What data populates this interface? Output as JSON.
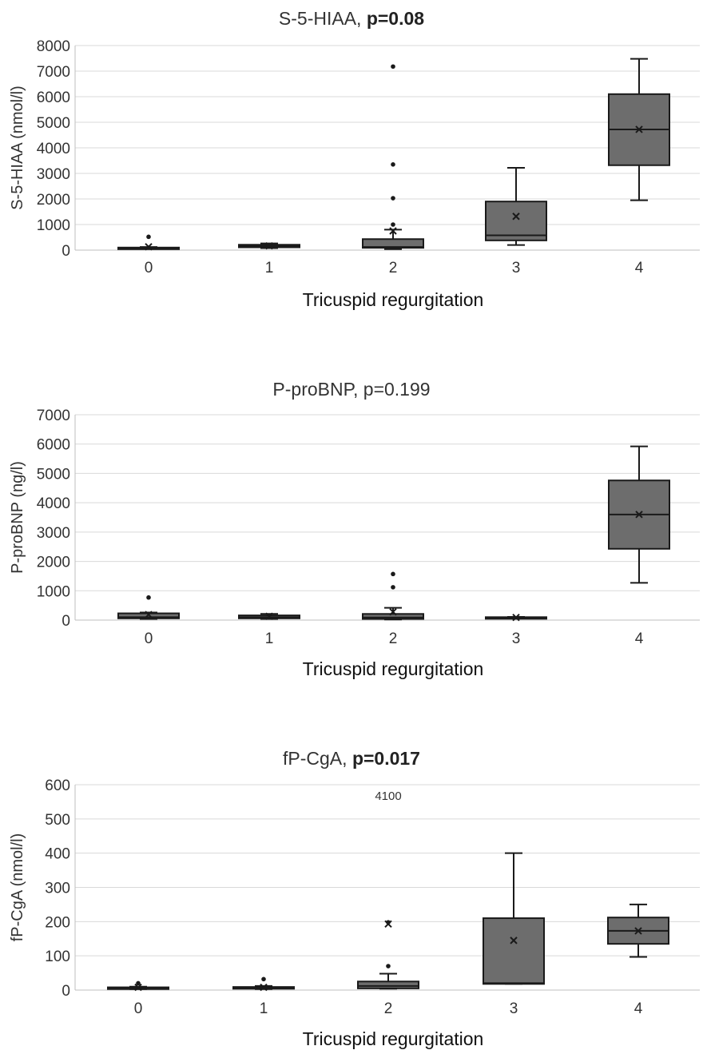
{
  "chart_data": [
    {
      "type": "box",
      "title": "S-5-HIAA, ",
      "title_bold": "p=0.08",
      "xlabel": "Tricuspid regurgitation",
      "ylabel": "S-5-HIAA (nmol/l)",
      "ylim": [
        0,
        8000
      ],
      "yticks": [
        0,
        1000,
        2000,
        3000,
        4000,
        5000,
        6000,
        7000,
        8000
      ],
      "grid": true,
      "categories": [
        "0",
        "1",
        "2",
        "3",
        "4"
      ],
      "boxes": [
        {
          "category": "0",
          "min": 60,
          "q1": 70,
          "median": 80,
          "q3": 100,
          "max": 120,
          "mean": 130,
          "outliers": [
            520
          ]
        },
        {
          "category": "1",
          "min": 80,
          "q1": 110,
          "median": 170,
          "q3": 210,
          "max": 260,
          "mean": 165,
          "outliers": []
        },
        {
          "category": "2",
          "min": 40,
          "q1": 90,
          "median": 120,
          "q3": 430,
          "max": 800,
          "mean": 750,
          "outliers": [
            1000,
            2030,
            3350,
            7180
          ]
        },
        {
          "category": "3",
          "min": 200,
          "q1": 380,
          "median": 580,
          "q3": 1900,
          "max": 3220,
          "mean": 1320,
          "outliers": []
        },
        {
          "category": "4",
          "min": 1950,
          "q1": 3320,
          "median": 4720,
          "q3": 6100,
          "max": 7480,
          "mean": 4720,
          "outliers": []
        }
      ]
    },
    {
      "type": "box",
      "title": "P-proBNP, p=0.199",
      "title_bold": "",
      "xlabel": "Tricuspid regurgitation",
      "ylabel": "P-proBNP (ng/l)",
      "ylim": [
        0,
        7000
      ],
      "yticks": [
        0,
        1000,
        2000,
        3000,
        4000,
        5000,
        6000,
        7000
      ],
      "grid": true,
      "categories": [
        "0",
        "1",
        "2",
        "3",
        "4"
      ],
      "boxes": [
        {
          "category": "0",
          "min": 40,
          "q1": 60,
          "median": 100,
          "q3": 230,
          "max": 260,
          "mean": 190,
          "outliers": [
            770
          ]
        },
        {
          "category": "1",
          "min": 40,
          "q1": 60,
          "median": 100,
          "q3": 160,
          "max": 210,
          "mean": 130,
          "outliers": []
        },
        {
          "category": "2",
          "min": 20,
          "q1": 40,
          "median": 90,
          "q3": 210,
          "max": 420,
          "mean": 280,
          "outliers": [
            1120,
            1570
          ]
        },
        {
          "category": "3",
          "min": 70,
          "q1": 80,
          "median": 90,
          "q3": 100,
          "max": 110,
          "mean": 90,
          "outliers": []
        },
        {
          "category": "4",
          "min": 1270,
          "q1": 2430,
          "median": 3600,
          "q3": 4760,
          "max": 5920,
          "mean": 3600,
          "outliers": []
        }
      ]
    },
    {
      "type": "box",
      "title": "fP-CgA, ",
      "title_bold": "p=0.017",
      "xlabel": "Tricuspid regurgitation",
      "ylabel": "fP-CgA (nmol/l)",
      "ylim": [
        0,
        600
      ],
      "yticks": [
        0,
        100,
        200,
        300,
        400,
        500,
        600
      ],
      "grid": true,
      "annotation": "4100",
      "categories": [
        "0",
        "1",
        "2",
        "3",
        "4"
      ],
      "boxes": [
        {
          "category": "0",
          "min": 3,
          "q1": 3,
          "median": 5,
          "q3": 8,
          "max": 10,
          "mean": 8,
          "outliers": [
            20
          ]
        },
        {
          "category": "1",
          "min": 3,
          "q1": 4,
          "median": 6,
          "q3": 9,
          "max": 12,
          "mean": 8,
          "outliers": [
            32
          ]
        },
        {
          "category": "2",
          "min": 4,
          "q1": 5,
          "median": 12,
          "q3": 25,
          "max": 48,
          "mean": 193,
          "outliers": [
            70,
            198
          ]
        },
        {
          "category": "3",
          "min": 18,
          "q1": 18,
          "median": 20,
          "q3": 210,
          "max": 400,
          "mean": 145,
          "outliers": []
        },
        {
          "category": "4",
          "min": 97,
          "q1": 135,
          "median": 173,
          "q3": 212,
          "max": 250,
          "mean": 173,
          "outliers": []
        }
      ]
    }
  ]
}
